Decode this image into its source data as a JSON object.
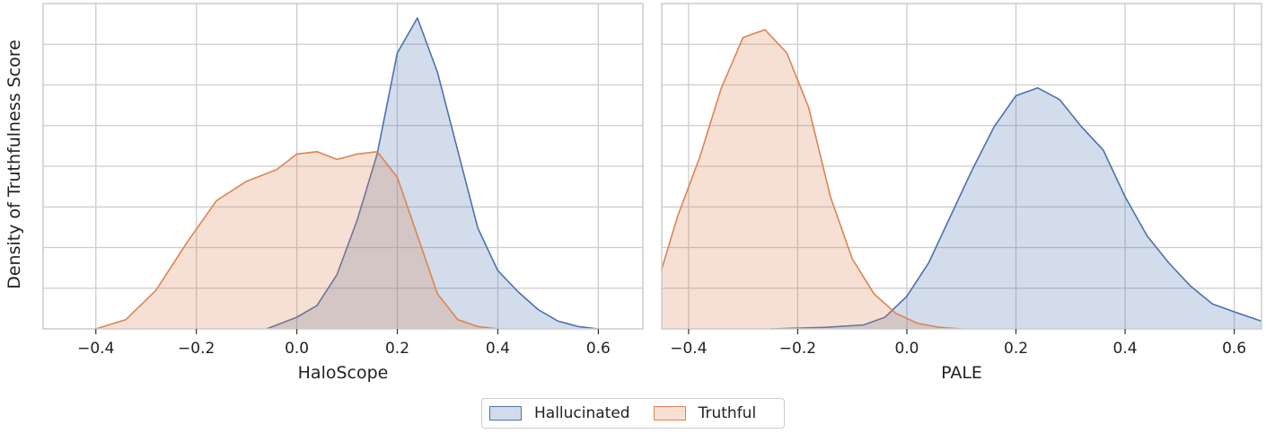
{
  "y_axis_label": "Density of Truthfulness Score",
  "colors": {
    "hallucinated": "#4c72b0",
    "truthful": "#dd8452",
    "grid": "#cccccc"
  },
  "legend": {
    "items": [
      {
        "label": "Hallucinated",
        "color": "#4c72b0"
      },
      {
        "label": "Truthful",
        "color": "#dd8452"
      }
    ]
  },
  "chart_data": [
    {
      "type": "area",
      "xlabel": "HaloScope",
      "ylabel": "Density of Truthfulness Score",
      "xlim": [
        -0.45,
        0.65
      ],
      "ylim": [
        0,
        4.0
      ],
      "xticks": [
        -0.4,
        -0.2,
        0.0,
        0.2,
        0.4,
        0.6
      ],
      "xtick_labels": [
        "−0.4",
        "−0.2",
        "0.0",
        "0.2",
        "0.4",
        "0.6"
      ],
      "grid": true,
      "series": [
        {
          "name": "Hallucinated",
          "color": "#4c72b0",
          "x": [
            -0.06,
            0.0,
            0.04,
            0.08,
            0.12,
            0.16,
            0.2,
            0.24,
            0.28,
            0.32,
            0.36,
            0.4,
            0.44,
            0.48,
            0.52,
            0.56,
            0.6
          ],
          "y": [
            0.0,
            0.15,
            0.3,
            0.7,
            1.4,
            2.25,
            3.55,
            4.0,
            3.3,
            2.3,
            1.3,
            0.75,
            0.48,
            0.25,
            0.1,
            0.03,
            0.0
          ]
        },
        {
          "name": "Truthful",
          "color": "#dd8452",
          "x": [
            -0.4,
            -0.34,
            -0.28,
            -0.22,
            -0.16,
            -0.1,
            -0.04,
            0.0,
            0.04,
            0.08,
            0.12,
            0.16,
            0.2,
            0.24,
            0.28,
            0.32,
            0.36,
            0.4
          ],
          "y": [
            0.0,
            0.12,
            0.5,
            1.1,
            1.65,
            1.9,
            2.05,
            2.25,
            2.28,
            2.18,
            2.25,
            2.28,
            1.95,
            1.2,
            0.45,
            0.12,
            0.03,
            0.0
          ]
        }
      ]
    },
    {
      "type": "area",
      "xlabel": "PALE",
      "ylabel": "",
      "xlim": [
        -0.45,
        0.65
      ],
      "ylim": [
        0,
        4.0
      ],
      "xticks": [
        -0.4,
        -0.2,
        0.0,
        0.2,
        0.4,
        0.6
      ],
      "xtick_labels": [
        "−0.4",
        "−0.2",
        "0.0",
        "0.2",
        "0.4",
        "0.6"
      ],
      "grid": true,
      "series": [
        {
          "name": "Hallucinated",
          "color": "#4c72b0",
          "x": [
            -0.25,
            -0.15,
            -0.08,
            -0.04,
            0.0,
            0.04,
            0.08,
            0.12,
            0.16,
            0.2,
            0.24,
            0.28,
            0.32,
            0.36,
            0.4,
            0.44,
            0.48,
            0.52,
            0.56,
            0.6,
            0.65
          ],
          "y": [
            0.0,
            0.02,
            0.05,
            0.15,
            0.42,
            0.85,
            1.45,
            2.05,
            2.6,
            3.0,
            3.1,
            2.95,
            2.6,
            2.3,
            1.7,
            1.2,
            0.85,
            0.55,
            0.32,
            0.22,
            0.1
          ]
        },
        {
          "name": "Truthful",
          "color": "#dd8452",
          "x": [
            -0.45,
            -0.42,
            -0.38,
            -0.34,
            -0.3,
            -0.26,
            -0.22,
            -0.18,
            -0.14,
            -0.1,
            -0.06,
            -0.02,
            0.02,
            0.06,
            0.1
          ],
          "y": [
            0.75,
            1.45,
            2.2,
            3.1,
            3.75,
            3.85,
            3.55,
            2.85,
            1.7,
            0.9,
            0.45,
            0.2,
            0.07,
            0.02,
            0.0
          ]
        }
      ]
    }
  ]
}
